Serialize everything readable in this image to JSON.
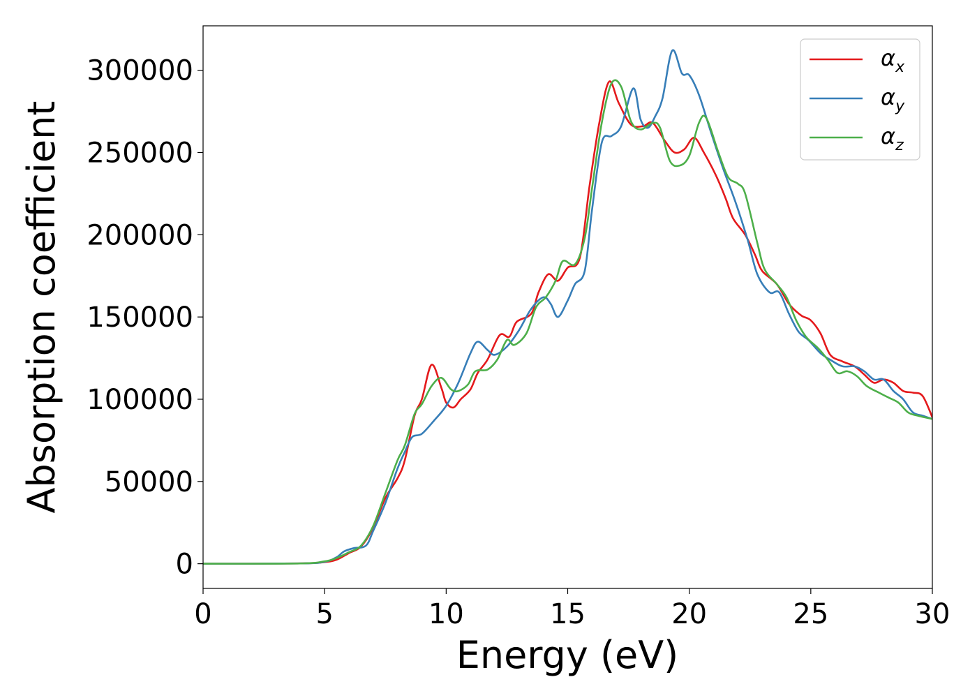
{
  "chart_data": {
    "type": "line",
    "title": "",
    "xlabel": "Energy (eV)",
    "ylabel": "Absorption coefficient",
    "xlim": [
      0,
      30
    ],
    "ylim": [
      -15000,
      327000
    ],
    "xticks": [
      0,
      5,
      10,
      15,
      20,
      25,
      30
    ],
    "xtick_labels": [
      "0",
      "5",
      "10",
      "15",
      "20",
      "25",
      "30"
    ],
    "yticks": [
      0,
      50000,
      100000,
      150000,
      200000,
      250000,
      300000
    ],
    "ytick_labels": [
      "0",
      "50000",
      "100000",
      "150000",
      "200000",
      "250000",
      "300000"
    ],
    "grid": false,
    "legend_position": "top-right",
    "series": [
      {
        "name": "α_x",
        "symbol": "α",
        "subscript": "x",
        "color": "#e41a1c",
        "points": [
          [
            0,
            0
          ],
          [
            4,
            200
          ],
          [
            5,
            1000
          ],
          [
            5.5,
            2500
          ],
          [
            6,
            6500
          ],
          [
            6.5,
            10500
          ],
          [
            7,
            22000
          ],
          [
            7.5,
            40000
          ],
          [
            8,
            52000
          ],
          [
            8.3,
            63000
          ],
          [
            8.7,
            90000
          ],
          [
            9,
            100000
          ],
          [
            9.4,
            121000
          ],
          [
            9.8,
            107000
          ],
          [
            10,
            98000
          ],
          [
            10.3,
            95000
          ],
          [
            10.6,
            100000
          ],
          [
            11,
            106000
          ],
          [
            11.3,
            116000
          ],
          [
            11.7,
            124000
          ],
          [
            12.2,
            139000
          ],
          [
            12.6,
            138000
          ],
          [
            12.9,
            147000
          ],
          [
            13.5,
            152000
          ],
          [
            13.8,
            165000
          ],
          [
            14.2,
            176000
          ],
          [
            14.6,
            172000
          ],
          [
            15,
            180000
          ],
          [
            15.5,
            186000
          ],
          [
            15.9,
            230000
          ],
          [
            16.3,
            268000
          ],
          [
            16.7,
            293000
          ],
          [
            17.1,
            280000
          ],
          [
            17.6,
            267000
          ],
          [
            18.1,
            266000
          ],
          [
            18.5,
            268000
          ],
          [
            19,
            257000
          ],
          [
            19.4,
            250000
          ],
          [
            19.8,
            252000
          ],
          [
            20.2,
            259000
          ],
          [
            20.6,
            250000
          ],
          [
            21.1,
            236000
          ],
          [
            21.5,
            222000
          ],
          [
            21.8,
            210000
          ],
          [
            22.3,
            200000
          ],
          [
            22.7,
            188000
          ],
          [
            23,
            178000
          ],
          [
            23.6,
            170000
          ],
          [
            24.1,
            158000
          ],
          [
            24.6,
            151000
          ],
          [
            25,
            148000
          ],
          [
            25.4,
            140000
          ],
          [
            25.8,
            127000
          ],
          [
            26.3,
            123000
          ],
          [
            26.8,
            120000
          ],
          [
            27.2,
            115000
          ],
          [
            27.6,
            110000
          ],
          [
            28,
            112000
          ],
          [
            28.4,
            110000
          ],
          [
            28.8,
            105000
          ],
          [
            29.2,
            104000
          ],
          [
            29.6,
            102000
          ],
          [
            30,
            89000
          ]
        ]
      },
      {
        "name": "α_y",
        "symbol": "α",
        "subscript": "y",
        "color": "#377eb8",
        "points": [
          [
            0,
            0
          ],
          [
            4,
            200
          ],
          [
            5,
            1200
          ],
          [
            5.5,
            4000
          ],
          [
            5.8,
            7500
          ],
          [
            6.2,
            9500
          ],
          [
            6.7,
            11000
          ],
          [
            7,
            20000
          ],
          [
            7.5,
            37000
          ],
          [
            8,
            58000
          ],
          [
            8.3,
            68000
          ],
          [
            8.6,
            77000
          ],
          [
            9,
            79000
          ],
          [
            9.5,
            87000
          ],
          [
            10,
            96000
          ],
          [
            10.5,
            110000
          ],
          [
            11,
            128000
          ],
          [
            11.3,
            135000
          ],
          [
            11.7,
            130000
          ],
          [
            12,
            127000
          ],
          [
            12.5,
            132000
          ],
          [
            13,
            142000
          ],
          [
            13.5,
            155000
          ],
          [
            14,
            162000
          ],
          [
            14.3,
            158000
          ],
          [
            14.6,
            150000
          ],
          [
            15,
            160000
          ],
          [
            15.3,
            170000
          ],
          [
            15.7,
            178000
          ],
          [
            16,
            215000
          ],
          [
            16.4,
            256000
          ],
          [
            16.8,
            260000
          ],
          [
            17.2,
            266000
          ],
          [
            17.7,
            289000
          ],
          [
            18,
            270000
          ],
          [
            18.3,
            265000
          ],
          [
            18.6,
            272000
          ],
          [
            18.9,
            283000
          ],
          [
            19.3,
            312000
          ],
          [
            19.7,
            298000
          ],
          [
            20,
            297000
          ],
          [
            20.4,
            285000
          ],
          [
            20.9,
            262000
          ],
          [
            21.4,
            240000
          ],
          [
            21.9,
            220000
          ],
          [
            22.4,
            197000
          ],
          [
            22.8,
            176000
          ],
          [
            23.3,
            165000
          ],
          [
            23.7,
            165000
          ],
          [
            24.1,
            152000
          ],
          [
            24.5,
            141000
          ],
          [
            24.9,
            136000
          ],
          [
            25.4,
            128000
          ],
          [
            25.8,
            124000
          ],
          [
            26.3,
            120000
          ],
          [
            26.8,
            120000
          ],
          [
            27.2,
            117000
          ],
          [
            27.6,
            112000
          ],
          [
            28,
            112000
          ],
          [
            28.4,
            105000
          ],
          [
            28.8,
            100000
          ],
          [
            29.2,
            92000
          ],
          [
            29.6,
            90000
          ],
          [
            30,
            88000
          ]
        ]
      },
      {
        "name": "α_z",
        "symbol": "α",
        "subscript": "z",
        "color": "#4daf4a",
        "points": [
          [
            0,
            0
          ],
          [
            4,
            200
          ],
          [
            5,
            1500
          ],
          [
            5.5,
            3500
          ],
          [
            6,
            7000
          ],
          [
            6.5,
            11000
          ],
          [
            7,
            23000
          ],
          [
            7.5,
            43000
          ],
          [
            8,
            63000
          ],
          [
            8.3,
            72000
          ],
          [
            8.7,
            91000
          ],
          [
            9,
            97000
          ],
          [
            9.4,
            108000
          ],
          [
            9.8,
            113000
          ],
          [
            10.2,
            106000
          ],
          [
            10.5,
            105000
          ],
          [
            10.9,
            109000
          ],
          [
            11.2,
            117000
          ],
          [
            11.7,
            118000
          ],
          [
            12.1,
            124000
          ],
          [
            12.5,
            136000
          ],
          [
            12.8,
            133000
          ],
          [
            13.3,
            140000
          ],
          [
            13.7,
            156000
          ],
          [
            14.1,
            162000
          ],
          [
            14.5,
            172000
          ],
          [
            14.8,
            184000
          ],
          [
            15.3,
            182000
          ],
          [
            15.7,
            198000
          ],
          [
            16,
            228000
          ],
          [
            16.4,
            268000
          ],
          [
            16.8,
            292000
          ],
          [
            17.2,
            290000
          ],
          [
            17.6,
            269000
          ],
          [
            18,
            264000
          ],
          [
            18.5,
            268000
          ],
          [
            18.8,
            265000
          ],
          [
            19.2,
            245000
          ],
          [
            19.6,
            242000
          ],
          [
            20,
            248000
          ],
          [
            20.4,
            268000
          ],
          [
            20.7,
            271000
          ],
          [
            21.2,
            250000
          ],
          [
            21.6,
            235000
          ],
          [
            22,
            231000
          ],
          [
            22.3,
            225000
          ],
          [
            22.8,
            195000
          ],
          [
            23.1,
            179000
          ],
          [
            23.6,
            170000
          ],
          [
            24,
            162000
          ],
          [
            24.4,
            148000
          ],
          [
            24.8,
            138000
          ],
          [
            25.3,
            131000
          ],
          [
            25.7,
            124000
          ],
          [
            26.1,
            116000
          ],
          [
            26.5,
            117000
          ],
          [
            26.9,
            114000
          ],
          [
            27.3,
            108000
          ],
          [
            27.8,
            104000
          ],
          [
            28.2,
            101000
          ],
          [
            28.6,
            98000
          ],
          [
            29,
            92000
          ],
          [
            29.4,
            90000
          ],
          [
            30,
            88000
          ]
        ]
      }
    ]
  }
}
